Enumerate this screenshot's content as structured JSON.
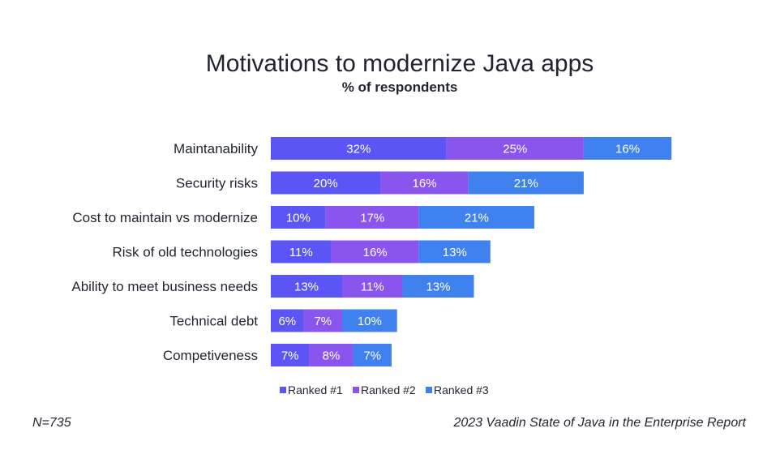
{
  "chart_data": {
    "type": "bar",
    "orientation": "horizontal",
    "stacked": true,
    "title": "Motivations to modernize Java apps",
    "subtitle": "% of respondents",
    "categories": [
      "Maintanability",
      "Security risks",
      "Cost to maintain vs modernize",
      "Risk of old technologies",
      "Ability to meet business needs",
      "Technical debt",
      "Competiveness"
    ],
    "series": [
      {
        "name": "Ranked #1",
        "color": "#5b55f5",
        "values": [
          32,
          20,
          10,
          11,
          13,
          6,
          7
        ]
      },
      {
        "name": "Ranked #2",
        "color": "#8a55ef",
        "values": [
          25,
          16,
          17,
          16,
          11,
          7,
          8
        ]
      },
      {
        "name": "Ranked #3",
        "color": "#3f82ef",
        "values": [
          16,
          21,
          21,
          13,
          13,
          10,
          7
        ]
      }
    ],
    "value_suffix": "%",
    "legend_position": "bottom",
    "grid": false
  },
  "footer": {
    "n": "N=735",
    "source": "2023 Vaadin State of Java in the Enterprise Report"
  }
}
